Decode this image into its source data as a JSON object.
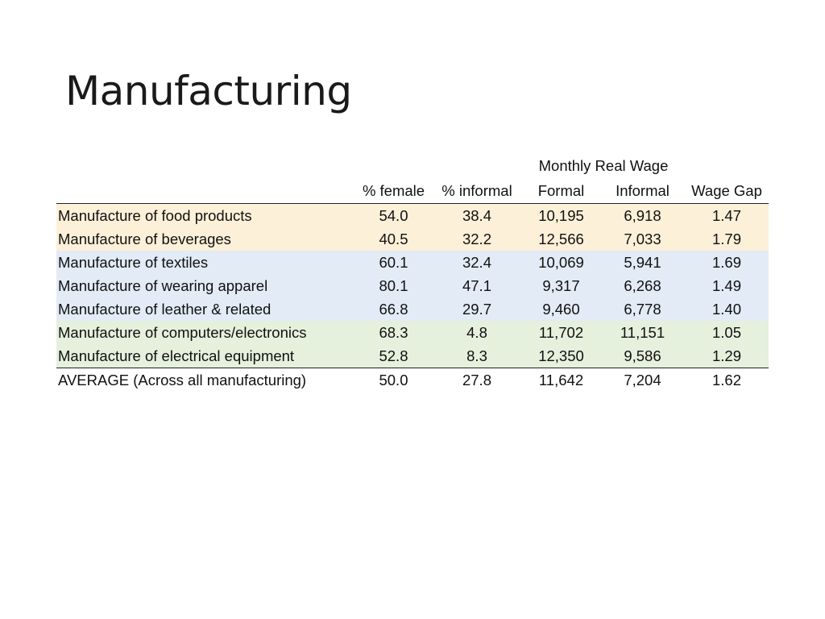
{
  "slide": {
    "title": "Manufacturing"
  },
  "table": {
    "group_header": "Monthly Real Wage",
    "columns": [
      "% female",
      "% informal",
      "Formal",
      "Informal",
      "Wage Gap"
    ],
    "rows": [
      {
        "name": "Manufacture of food products",
        "female": "54.0",
        "informal_pct": "38.4",
        "formal_wage": "10,195",
        "informal_wage": "6,918",
        "wage_gap": "1.47",
        "group": "orange",
        "color": "#fdf0d8"
      },
      {
        "name": "Manufacture of beverages",
        "female": "40.5",
        "informal_pct": "32.2",
        "formal_wage": "12,566",
        "informal_wage": "7,033",
        "wage_gap": "1.79",
        "group": "orange",
        "color": "#fdf0d8"
      },
      {
        "name": "Manufacture of textiles",
        "female": "60.1",
        "informal_pct": "32.4",
        "formal_wage": "10,069",
        "informal_wage": "5,941",
        "wage_gap": "1.69",
        "group": "blue",
        "color": "#e2ebf6"
      },
      {
        "name": "Manufacture of wearing apparel",
        "female": "80.1",
        "informal_pct": "47.1",
        "formal_wage": "9,317",
        "informal_wage": "6,268",
        "wage_gap": "1.49",
        "group": "blue",
        "color": "#e2ebf6"
      },
      {
        "name": "Manufacture of leather & related",
        "female": "66.8",
        "informal_pct": "29.7",
        "formal_wage": "9,460",
        "informal_wage": "6,778",
        "wage_gap": "1.40",
        "group": "blue",
        "color": "#e2ebf6"
      },
      {
        "name": "Manufacture of computers/electronics",
        "female": "68.3",
        "informal_pct": "4.8",
        "formal_wage": "11,702",
        "informal_wage": "11,151",
        "wage_gap": "1.05",
        "group": "green",
        "color": "#e5f0dd"
      },
      {
        "name": "Manufacture of electrical equipment",
        "female": "52.8",
        "informal_pct": "8.3",
        "formal_wage": "12,350",
        "informal_wage": "9,586",
        "wage_gap": "1.29",
        "group": "green",
        "color": "#e5f0dd"
      }
    ],
    "average": {
      "name": "AVERAGE (Across all manufacturing)",
      "female": "50.0",
      "informal_pct": "27.8",
      "formal_wage": "11,642",
      "informal_wage": "7,204",
      "wage_gap": "1.62"
    }
  }
}
